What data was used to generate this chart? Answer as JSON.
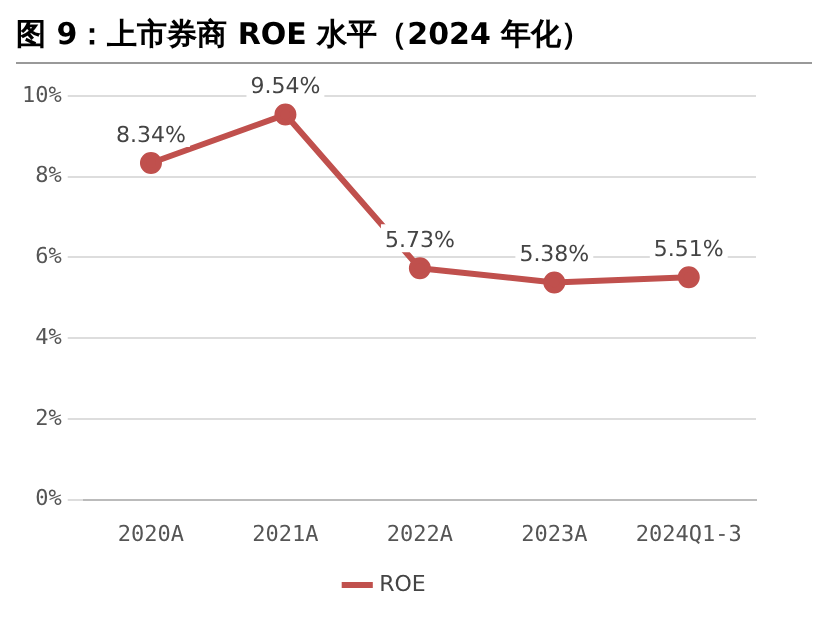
{
  "chart_data": {
    "type": "line",
    "title": "图 9：上市券商 ROE 水平（2024 年化）",
    "categories": [
      "2020A",
      "2021A",
      "2022A",
      "2023A",
      "2024Q1-3"
    ],
    "series": [
      {
        "name": "ROE",
        "color": "#c0504d",
        "values": [
          8.34,
          9.54,
          5.73,
          5.38,
          5.51
        ],
        "value_labels": [
          "8.34%",
          "9.54%",
          "5.73%",
          "5.38%",
          "5.51%"
        ]
      }
    ],
    "ylim": [
      0,
      10
    ],
    "yticks": [
      {
        "value": 0,
        "label": "0%"
      },
      {
        "value": 2,
        "label": "2%"
      },
      {
        "value": 4,
        "label": "4%"
      },
      {
        "value": 6,
        "label": "6%"
      },
      {
        "value": 8,
        "label": "8%"
      },
      {
        "value": 10,
        "label": "10%"
      }
    ],
    "grid": "y",
    "legend": "bottom",
    "marker": "circle",
    "line_style": "solid"
  }
}
